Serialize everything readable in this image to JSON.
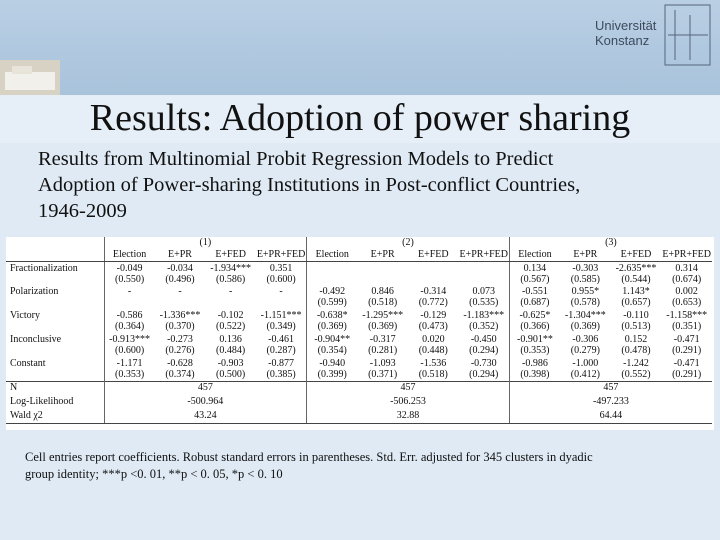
{
  "header": {
    "university": [
      "Universität",
      "Konstanz"
    ]
  },
  "title": "Results: Adoption of power sharing",
  "subtitle": [
    "Results from Multinomial Probit Regression Models to Predict",
    "Adoption of Power-sharing Institutions in Post-conflict Countries,",
    "1946-2009"
  ],
  "table": {
    "groups": [
      "(1)",
      "(2)",
      "(3)"
    ],
    "columns": [
      "Election",
      "E+PR",
      "E+FED",
      "E+PR+FED",
      "Election",
      "E+PR",
      "E+FED",
      "E+PR+FED",
      "Election",
      "E+PR",
      "E+FED",
      "E+PR+FED"
    ],
    "rows": [
      {
        "label": "Fractionalization",
        "coef": [
          "-0.049",
          "-0.034",
          "-1.934***",
          "0.351",
          null,
          null,
          null,
          null,
          "0.134",
          "-0.303",
          "-2.635***",
          "0.314"
        ],
        "se": [
          "(0.550)",
          "(0.496)",
          "(0.586)",
          "(0.600)",
          null,
          null,
          null,
          null,
          "(0.567)",
          "(0.585)",
          "(0.544)",
          "(0.674)"
        ]
      },
      {
        "label": "Polarization",
        "coef": [
          "-",
          "-",
          "-",
          "-",
          "-0.492",
          "0.846",
          "-0.314",
          "0.073",
          "-0.551",
          "0.955*",
          "1.143*",
          "0.002"
        ],
        "se": [
          null,
          null,
          null,
          null,
          "(0.599)",
          "(0.518)",
          "(0.772)",
          "(0.535)",
          "(0.687)",
          "(0.578)",
          "(0.657)",
          "(0.653)"
        ]
      },
      {
        "label": "Victory",
        "coef": [
          "-0.586",
          "-1.336***",
          "-0.102",
          "-1.151***",
          "-0.638*",
          "-1.295***",
          "-0.129",
          "-1.183***",
          "-0.625*",
          "-1.304***",
          "-0.110",
          "-1.158***"
        ],
        "se": [
          "(0.364)",
          "(0.370)",
          "(0.522)",
          "(0.349)",
          "(0.369)",
          "(0.369)",
          "(0.473)",
          "(0.352)",
          "(0.366)",
          "(0.369)",
          "(0.513)",
          "(0.351)"
        ]
      },
      {
        "label": "Inconclusive",
        "coef": [
          "-0.913***",
          "-0.273",
          "0.136",
          "-0.461",
          "-0.904**",
          "-0.317",
          "0.020",
          "-0.450",
          "-0.901**",
          "-0.306",
          "0.152",
          "-0.471"
        ],
        "se": [
          "(0.600)",
          "(0.276)",
          "(0.484)",
          "(0.287)",
          "(0.354)",
          "(0.281)",
          "(0.448)",
          "(0.294)",
          "(0.353)",
          "(0.279)",
          "(0.478)",
          "(0.291)"
        ]
      },
      {
        "label": "Constant",
        "coef": [
          "-1.171",
          "-0.628",
          "-0.903",
          "-0.877",
          "-0.940",
          "-1.093",
          "-1.536",
          "-0.730",
          "-0.986",
          "-1.000",
          "-1.242",
          "-0.471"
        ],
        "se": [
          "(0.353)",
          "(0.374)",
          "(0.500)",
          "(0.385)",
          "(0.399)",
          "(0.371)",
          "(0.518)",
          "(0.294)",
          "(0.398)",
          "(0.412)",
          "(0.552)",
          "(0.291)"
        ]
      }
    ],
    "stats": [
      {
        "label": "N",
        "values": [
          "457",
          "457",
          "457"
        ]
      },
      {
        "label": "Log-Likelihood",
        "values": [
          "-500.964",
          "-506.253",
          "-497.233"
        ]
      },
      {
        "label": "Wald χ2",
        "values": [
          "43.24",
          "32.88",
          "64.44"
        ]
      }
    ]
  },
  "footnote": [
    "Cell entries report coefficients. Robust standard errors in parentheses. Std. Err. adjusted for 345 clusters in dyadic",
    "group identity; ***p <0. 01, **p < 0. 05, *p < 0. 10"
  ]
}
